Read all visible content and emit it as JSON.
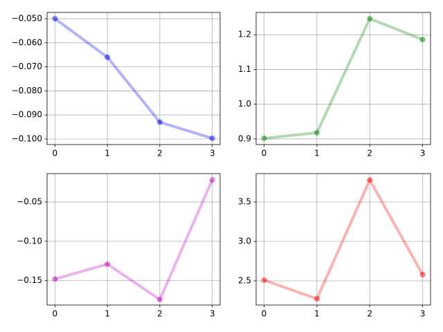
{
  "chart_data": [
    {
      "type": "line",
      "x": [
        0,
        1,
        2,
        3
      ],
      "values": [
        -0.05,
        -0.066,
        -0.093,
        -0.0997
      ],
      "color": "#0000ff",
      "xlim": [
        -0.15,
        3.15
      ],
      "xticks": [
        0,
        1,
        2,
        3
      ],
      "ylim": [
        -0.1023,
        -0.0474
      ],
      "yticks": [
        {
          "value": -0.1,
          "label": "−0.100"
        },
        {
          "value": -0.09,
          "label": "−0.090"
        },
        {
          "value": -0.08,
          "label": "−0.080"
        },
        {
          "value": -0.07,
          "label": "−0.070"
        },
        {
          "value": -0.06,
          "label": "−0.060"
        },
        {
          "value": -0.05,
          "label": "−0.050"
        }
      ],
      "grid": true
    },
    {
      "type": "line",
      "x": [
        0,
        1,
        2,
        3
      ],
      "values": [
        0.902,
        0.918,
        1.246,
        1.186
      ],
      "color": "#008000",
      "xlim": [
        -0.15,
        3.15
      ],
      "xticks": [
        0,
        1,
        2,
        3
      ],
      "ylim": [
        0.884,
        1.264
      ],
      "yticks": [
        0.9,
        {
          "value": 1,
          "label": "1.0"
        },
        1.1,
        1.2
      ],
      "grid": true
    },
    {
      "type": "line",
      "x": [
        0,
        1,
        2,
        3
      ],
      "values": [
        -0.148,
        -0.129,
        -0.174,
        -0.022
      ],
      "color": "#bf00bf",
      "xlim": [
        -0.15,
        3.15
      ],
      "xticks": [
        0,
        1,
        2,
        3
      ],
      "ylim": [
        -0.181,
        -0.014
      ],
      "yticks": [
        {
          "value": -0.15,
          "label": "−0.15"
        },
        {
          "value": -0.1,
          "label": "−0.10"
        },
        {
          "value": -0.05,
          "label": "−0.05"
        }
      ],
      "grid": true
    },
    {
      "type": "line",
      "x": [
        0,
        1,
        2,
        3
      ],
      "values": [
        2.509,
        2.272,
        3.78,
        2.579
      ],
      "color": "#ff0000",
      "xlim": [
        -0.15,
        3.15
      ],
      "xticks": [
        0,
        1,
        2,
        3
      ],
      "ylim": [
        2.193,
        3.86
      ],
      "yticks": [
        2.5,
        {
          "value": 3,
          "label": "3.0"
        },
        3.5
      ],
      "grid": true
    }
  ]
}
